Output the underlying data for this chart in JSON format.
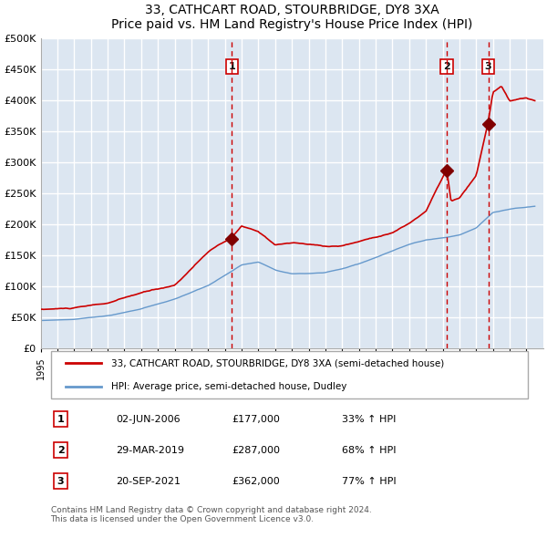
{
  "title": "33, CATHCART ROAD, STOURBRIDGE, DY8 3XA",
  "subtitle": "Price paid vs. HM Land Registry's House Price Index (HPI)",
  "xlabel": "",
  "ylabel": "",
  "ylim": [
    0,
    500000
  ],
  "yticks": [
    0,
    50000,
    100000,
    150000,
    200000,
    250000,
    300000,
    350000,
    400000,
    450000,
    500000
  ],
  "ytick_labels": [
    "£0",
    "£50K",
    "£100K",
    "£150K",
    "£200K",
    "£250K",
    "£300K",
    "£350K",
    "£400K",
    "£450K",
    "£500K"
  ],
  "background_color": "#dce6f1",
  "plot_bg_color": "#dce6f1",
  "grid_color": "#ffffff",
  "red_line_color": "#cc0000",
  "blue_line_color": "#6699cc",
  "vline_color": "#cc0000",
  "marker_color": "#800000",
  "sale_points": [
    {
      "date_num": 2006.42,
      "price": 177000,
      "label": "1"
    },
    {
      "date_num": 2019.24,
      "price": 287000,
      "label": "2"
    },
    {
      "date_num": 2021.72,
      "price": 362000,
      "label": "3"
    }
  ],
  "box_color": "#ffffff",
  "box_edge_color": "#cc0000",
  "legend_entries": [
    "33, CATHCART ROAD, STOURBRIDGE, DY8 3XA (semi-detached house)",
    "HPI: Average price, semi-detached house, Dudley"
  ],
  "table_data": [
    [
      "1",
      "02-JUN-2006",
      "£177,000",
      "33% ↑ HPI"
    ],
    [
      "2",
      "29-MAR-2019",
      "£287,000",
      "68% ↑ HPI"
    ],
    [
      "3",
      "20-SEP-2021",
      "£362,000",
      "77% ↑ HPI"
    ]
  ],
  "footer": "Contains HM Land Registry data © Crown copyright and database right 2024.\nThis data is licensed under the Open Government Licence v3.0.",
  "xmin": 1995,
  "xmax": 2025
}
